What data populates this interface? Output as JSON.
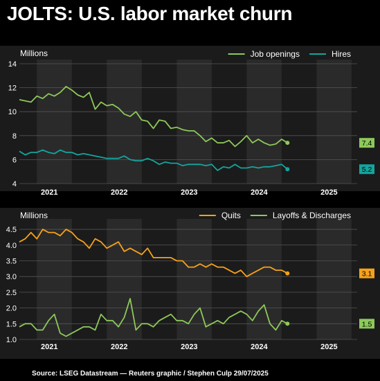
{
  "title": "JOLTS: U.S. labor market churn",
  "source": "Source: LSEG Datastream — Reuters graphic / Stephen Culp 29/07/2025",
  "colors": {
    "green": "#8dc95a",
    "teal": "#14a59d",
    "orange": "#f7a21b",
    "panel": "#1b1b1b",
    "band": "#2a2a2a",
    "grid": "#555555"
  },
  "chart_data": [
    {
      "type": "line",
      "ylabel": "Millions",
      "ylim": [
        4,
        14
      ],
      "yticks": [
        4,
        6,
        8,
        10,
        12,
        14
      ],
      "xlim": [
        2020.75,
        2025.58
      ],
      "xticks": [
        {
          "label": "2021",
          "x": 2021.0
        },
        {
          "label": "2022",
          "x": 2022.0
        },
        {
          "label": "2023",
          "x": 2023.0
        },
        {
          "label": "2024",
          "x": 2024.0
        },
        {
          "label": "2025",
          "x": 2025.0
        }
      ],
      "x_start": 2020.75,
      "x_step": 0.08333,
      "grid": true,
      "legend": "top-right",
      "series": [
        {
          "name": "Job openings",
          "color": "#8dc95a",
          "end_label": "7.4",
          "values": [
            11.0,
            10.9,
            10.8,
            11.3,
            11.1,
            11.5,
            11.3,
            11.6,
            12.1,
            11.8,
            11.4,
            11.2,
            11.6,
            10.2,
            10.8,
            10.5,
            10.6,
            10.3,
            9.8,
            9.6,
            10.0,
            9.3,
            9.2,
            8.6,
            9.3,
            9.2,
            8.6,
            8.7,
            8.5,
            8.4,
            8.4,
            8.0,
            7.5,
            7.8,
            7.4,
            7.4,
            7.6,
            7.1,
            7.5,
            8.0,
            7.4,
            7.7,
            7.4,
            7.2,
            7.3,
            7.7,
            7.4
          ]
        },
        {
          "name": "Hires",
          "color": "#14a59d",
          "end_label": "5.2",
          "values": [
            6.7,
            6.4,
            6.6,
            6.6,
            6.8,
            6.6,
            6.5,
            6.8,
            6.6,
            6.6,
            6.4,
            6.5,
            6.4,
            6.3,
            6.2,
            6.1,
            6.1,
            6.1,
            6.3,
            6.0,
            5.9,
            5.9,
            6.1,
            5.9,
            5.6,
            5.8,
            5.7,
            5.7,
            5.5,
            5.6,
            5.6,
            5.6,
            5.5,
            5.6,
            5.1,
            5.4,
            5.3,
            5.6,
            5.3,
            5.3,
            5.4,
            5.3,
            5.4,
            5.4,
            5.5,
            5.6,
            5.2
          ]
        }
      ]
    },
    {
      "type": "line",
      "ylabel": "Millions",
      "ylim": [
        1.0,
        4.7
      ],
      "yticks": [
        1.0,
        1.5,
        2.0,
        2.5,
        3.0,
        3.5,
        4.0,
        4.5
      ],
      "xlim": [
        2020.75,
        2025.58
      ],
      "xticks": [
        {
          "label": "2021",
          "x": 2021.0
        },
        {
          "label": "2022",
          "x": 2022.0
        },
        {
          "label": "2023",
          "x": 2023.0
        },
        {
          "label": "2024",
          "x": 2024.0
        },
        {
          "label": "2025",
          "x": 2025.0
        }
      ],
      "x_start": 2020.75,
      "x_step": 0.08333,
      "grid": true,
      "legend": "top-right",
      "series": [
        {
          "name": "Quits",
          "color": "#f7a21b",
          "end_label": "3.1",
          "values": [
            4.1,
            4.2,
            4.4,
            4.2,
            4.5,
            4.4,
            4.4,
            4.3,
            4.5,
            4.4,
            4.2,
            4.1,
            3.9,
            4.2,
            4.1,
            3.9,
            4.0,
            4.1,
            3.8,
            3.9,
            3.8,
            3.7,
            3.9,
            3.6,
            3.6,
            3.6,
            3.6,
            3.5,
            3.5,
            3.3,
            3.3,
            3.4,
            3.3,
            3.4,
            3.3,
            3.3,
            3.2,
            3.1,
            3.2,
            3.0,
            3.1,
            3.2,
            3.3,
            3.3,
            3.2,
            3.2,
            3.1
          ]
        },
        {
          "name": "Layoffs & Discharges",
          "color": "#8dc95a",
          "end_label": "1.5",
          "values": [
            1.4,
            1.5,
            1.5,
            1.3,
            1.3,
            1.6,
            1.8,
            1.2,
            1.1,
            1.2,
            1.3,
            1.4,
            1.4,
            1.3,
            1.8,
            1.6,
            1.6,
            1.4,
            1.7,
            2.3,
            1.3,
            1.5,
            1.5,
            1.4,
            1.6,
            1.7,
            1.8,
            1.6,
            1.6,
            1.5,
            1.8,
            2.0,
            1.4,
            1.5,
            1.6,
            1.5,
            1.7,
            1.8,
            1.9,
            1.8,
            1.6,
            1.9,
            2.1,
            1.5,
            1.3,
            1.6,
            1.5
          ]
        }
      ]
    }
  ]
}
